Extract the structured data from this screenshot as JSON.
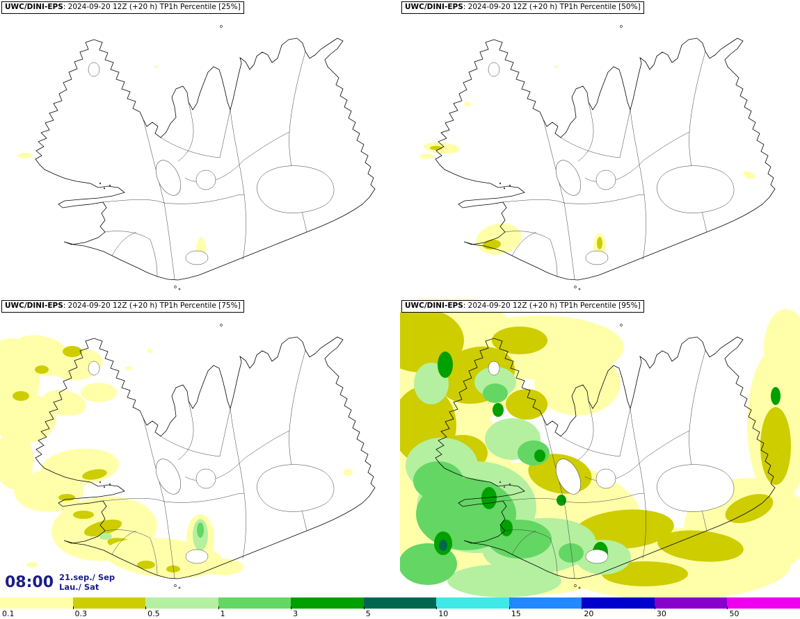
{
  "panels": [
    {
      "percentile": "25%",
      "title_bold": "UWC/DINI-EPS",
      "title_rest": ": 2024-09-20 12Z (+20 h) TP1h Percentile [25%]",
      "blobs": [
        [
          "y1",
          36,
          224,
          11,
          4,
          0
        ],
        [
          "y1",
          289,
          360,
          7,
          19,
          0
        ],
        [
          "y1",
          225,
          96,
          3,
          2,
          0
        ]
      ]
    },
    {
      "percentile": "50%",
      "title_bold": "UWC/DINI-EPS",
      "title_rest": ": 2024-09-20 12Z (+20 h) TP1h Percentile [50%]",
      "blobs": [
        [
          "y1",
          38,
          225,
          10,
          4,
          0
        ],
        [
          "y1",
          60,
          213,
          26,
          8,
          5
        ],
        [
          "y2",
          52,
          213,
          9,
          3,
          0
        ],
        [
          "y1",
          97,
          150,
          5,
          3,
          0
        ],
        [
          "y1",
          142,
          344,
          33,
          22,
          -10
        ],
        [
          "y2",
          132,
          352,
          13,
          7,
          -5
        ],
        [
          "y1",
          287,
          357,
          9,
          22,
          0
        ],
        [
          "y2",
          287,
          350,
          4,
          9,
          0
        ],
        [
          "y1",
          502,
          252,
          9,
          5,
          20
        ],
        [
          "y1",
          225,
          96,
          3,
          2,
          0
        ]
      ]
    },
    {
      "percentile": "75%",
      "title_bold": "UWC/DINI-EPS",
      "title_rest": ": 2024-09-20 12Z (+20 h) TP1h Percentile [75%]",
      "blobs": [
        [
          "y1",
          15,
          115,
          42,
          58,
          0
        ],
        [
          "y1",
          60,
          82,
          46,
          28,
          15
        ],
        [
          "y1",
          112,
          95,
          36,
          22,
          -10
        ],
        [
          "y1",
          35,
          172,
          46,
          36,
          0
        ],
        [
          "y1",
          92,
          150,
          32,
          18,
          10
        ],
        [
          "y1",
          142,
          135,
          26,
          14,
          0
        ],
        [
          "y2",
          104,
          76,
          14,
          8,
          0
        ],
        [
          "y2",
          60,
          102,
          10,
          6,
          0
        ],
        [
          "y2",
          30,
          140,
          12,
          7,
          0
        ],
        [
          "y1",
          20,
          232,
          28,
          42,
          0
        ],
        [
          "y1",
          115,
          242,
          56,
          26,
          -5
        ],
        [
          "y2",
          136,
          253,
          18,
          7,
          -10
        ],
        [
          "y1",
          70,
          277,
          50,
          30,
          0
        ],
        [
          "y2",
          96,
          286,
          12,
          5,
          0
        ],
        [
          "y1",
          150,
          331,
          76,
          46,
          -5
        ],
        [
          "y2",
          148,
          330,
          28,
          10,
          -15
        ],
        [
          "y2",
          176,
          353,
          22,
          8,
          10
        ],
        [
          "g1",
          152,
          342,
          9,
          5,
          0
        ],
        [
          "y2",
          120,
          311,
          15,
          6,
          0
        ],
        [
          "y1",
          236,
          373,
          86,
          28,
          5
        ],
        [
          "y2",
          210,
          383,
          13,
          6,
          0
        ],
        [
          "y2",
          249,
          389,
          10,
          5,
          0
        ],
        [
          "y1",
          320,
          386,
          30,
          12,
          0
        ],
        [
          "y1",
          288,
          345,
          20,
          35,
          0
        ],
        [
          "g1",
          288,
          340,
          11,
          23,
          0
        ],
        [
          "g2",
          288,
          333,
          5,
          11,
          0
        ],
        [
          "y1",
          500,
          250,
          7,
          5,
          0
        ],
        [
          "y1",
          185,
          100,
          5,
          3,
          0
        ],
        [
          "y1",
          215,
          75,
          4,
          3,
          0
        ],
        [
          "y1",
          46,
          383,
          8,
          4,
          0
        ],
        [
          "y1",
          76,
          396,
          6,
          3,
          0
        ]
      ]
    },
    {
      "percentile": "95%",
      "title_bold": "UWC/DINI-EPS",
      "title_rest": ": 2024-09-20 12Z (+20 h) TP1h Percentile [95%]",
      "blobs": [
        [
          "y1",
          70,
          90,
          112,
          96,
          0
        ],
        [
          "y1",
          50,
          260,
          112,
          122,
          0
        ],
        [
          "y1",
          200,
          330,
          152,
          96,
          0
        ],
        [
          "y1",
          390,
          382,
          172,
          52,
          0
        ],
        [
          "y1",
          500,
          330,
          92,
          72,
          0
        ],
        [
          "y1",
          545,
          180,
          46,
          112,
          0
        ],
        [
          "y1",
          200,
          70,
          122,
          46,
          0
        ],
        [
          "y1",
          255,
          122,
          62,
          46,
          0
        ],
        [
          "y1",
          555,
          70,
          32,
          55,
          0
        ],
        [
          "y2",
          30,
          60,
          62,
          46,
          0
        ],
        [
          "y2",
          110,
          110,
          56,
          40,
          -15
        ],
        [
          "y2",
          35,
          182,
          46,
          56,
          0
        ],
        [
          "y2",
          172,
          60,
          40,
          20,
          0
        ],
        [
          "y2",
          230,
          252,
          46,
          28,
          10
        ],
        [
          "y2",
          322,
          332,
          72,
          28,
          -5
        ],
        [
          "y2",
          432,
          356,
          62,
          22,
          5
        ],
        [
          "y2",
          540,
          212,
          22,
          56,
          0
        ],
        [
          "y2",
          502,
          302,
          36,
          18,
          -20
        ],
        [
          "y2",
          182,
          152,
          30,
          22,
          0
        ],
        [
          "y2",
          90,
          222,
          36,
          26,
          0
        ],
        [
          "y2",
          352,
          396,
          62,
          18,
          0
        ],
        [
          "g1",
          110,
          300,
          86,
          66,
          0
        ],
        [
          "g1",
          200,
          356,
          82,
          40,
          -5
        ],
        [
          "g1",
          60,
          240,
          52,
          40,
          0
        ],
        [
          "g1",
          162,
          202,
          40,
          30,
          0
        ],
        [
          "g1",
          137,
          120,
          30,
          22,
          0
        ],
        [
          "g1",
          45,
          122,
          25,
          30,
          0
        ],
        [
          "g1",
          292,
          372,
          40,
          25,
          0
        ],
        [
          "g1",
          150,
          406,
          82,
          24,
          0
        ],
        [
          "g2",
          95,
          310,
          72,
          52,
          0
        ],
        [
          "g2",
          55,
          262,
          36,
          28,
          0
        ],
        [
          "g2",
          172,
          346,
          46,
          28,
          0
        ],
        [
          "g2",
          192,
          222,
          23,
          18,
          0
        ],
        [
          "g2",
          137,
          136,
          18,
          14,
          0
        ],
        [
          "g2",
          246,
          366,
          18,
          14,
          0
        ],
        [
          "g2",
          40,
          382,
          42,
          30,
          0
        ],
        [
          "g3",
          65,
          95,
          11,
          19,
          0
        ],
        [
          "g3",
          141,
          160,
          8,
          10,
          0
        ],
        [
          "g3",
          128,
          287,
          11,
          16,
          0
        ],
        [
          "g3",
          62,
          352,
          13,
          17,
          0
        ],
        [
          "g3",
          153,
          330,
          9,
          12,
          0
        ],
        [
          "g3",
          288,
          365,
          11,
          15,
          0
        ],
        [
          "g3",
          232,
          290,
          7,
          8,
          0
        ],
        [
          "g3",
          540,
          140,
          7,
          13,
          0
        ],
        [
          "g3",
          201,
          226,
          8,
          9,
          0
        ],
        [
          "g4",
          62,
          355,
          6,
          8,
          0
        ],
        [
          "g4",
          288,
          368,
          5,
          7,
          0
        ]
      ]
    }
  ],
  "clock": {
    "time": "08:00",
    "date": "21.sep./ Sep",
    "day": "Lau./ Sat"
  },
  "palette": {
    "y1": "#ffffaa",
    "y2": "#cdcd00",
    "g1": "#b4f0a0",
    "g2": "#63d663",
    "g3": "#00a000",
    "g4": "#006650"
  },
  "colorbar": {
    "labels": [
      "0.1",
      "0.3",
      "0.5",
      "1",
      "3",
      "5",
      "10",
      "15",
      "20",
      "30",
      "50"
    ],
    "colors": [
      "#ffffaa",
      "#cdcd00",
      "#b4f0a0",
      "#63d663",
      "#00a000",
      "#006650",
      "#40e8e8",
      "#2288ff",
      "#0000cc",
      "#8800cc",
      "#ee00ee"
    ]
  }
}
